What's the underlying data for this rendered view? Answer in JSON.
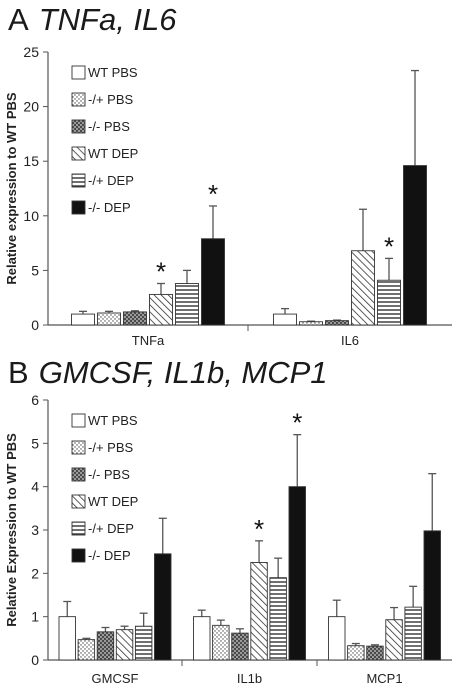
{
  "colors": {
    "axis": "#555555",
    "bar_stroke": "#333333",
    "error": "#555555",
    "ink": "#111111"
  },
  "legend_entries": [
    "WT PBS",
    "-/+ PBS",
    "-/- PBS",
    "WT DEP",
    "-/+ DEP",
    "-/- DEP"
  ],
  "chart_data": [
    {
      "type": "bar",
      "panel_letter": "A",
      "panel_title": "TNFa, IL6",
      "ylabel": "Relative expression to WT PBS",
      "xlabel": "",
      "ylim": [
        0,
        25
      ],
      "yticks": [
        0,
        5,
        10,
        15,
        20,
        25
      ],
      "categories": [
        "TNFa",
        "IL6"
      ],
      "legend_position": "top-left",
      "series": [
        {
          "name": "WT PBS",
          "pattern": "white",
          "values": [
            1.0,
            1.0
          ],
          "errors": [
            0.25,
            0.5
          ]
        },
        {
          "name": "-/+ PBS",
          "pattern": "dots",
          "values": [
            1.1,
            0.3
          ],
          "errors": [
            0.15,
            0.05
          ]
        },
        {
          "name": "-/- PBS",
          "pattern": "checker",
          "values": [
            1.2,
            0.4
          ],
          "errors": [
            0.1,
            0.05
          ]
        },
        {
          "name": "WT DEP",
          "pattern": "diagonal",
          "values": [
            2.8,
            6.8
          ],
          "errors": [
            1.0,
            3.8
          ]
        },
        {
          "name": "-/+ DEP",
          "pattern": "hlines",
          "values": [
            3.8,
            4.1
          ],
          "errors": [
            1.2,
            2.0
          ]
        },
        {
          "name": "-/- DEP",
          "pattern": "black",
          "values": [
            7.9,
            14.6
          ],
          "errors": [
            3.0,
            8.7
          ]
        }
      ],
      "significance": [
        {
          "category": "TNFa",
          "series": "WT DEP",
          "label": "*"
        },
        {
          "category": "TNFa",
          "series": "-/- DEP",
          "label": "*"
        },
        {
          "category": "IL6",
          "series": "-/+ DEP",
          "label": "*"
        }
      ]
    },
    {
      "type": "bar",
      "panel_letter": "B",
      "panel_title": "GMCSF, IL1b, MCP1",
      "ylabel": "Relative Expression to WT PBS",
      "xlabel": "",
      "ylim": [
        0,
        6
      ],
      "yticks": [
        0,
        1,
        2,
        3,
        4,
        5,
        6
      ],
      "categories": [
        "GMCSF",
        "IL1b",
        "MCP1"
      ],
      "legend_position": "top-left",
      "series": [
        {
          "name": "WT PBS",
          "pattern": "white",
          "values": [
            1.0,
            1.0,
            1.0
          ],
          "errors": [
            0.35,
            0.15,
            0.38
          ]
        },
        {
          "name": "-/+ PBS",
          "pattern": "dots",
          "values": [
            0.47,
            0.8,
            0.33
          ],
          "errors": [
            0.03,
            0.12,
            0.05
          ]
        },
        {
          "name": "-/- PBS",
          "pattern": "checker",
          "values": [
            0.65,
            0.62,
            0.32
          ],
          "errors": [
            0.1,
            0.1,
            0.03
          ]
        },
        {
          "name": "WT DEP",
          "pattern": "diagonal",
          "values": [
            0.7,
            2.25,
            0.93
          ],
          "errors": [
            0.08,
            0.5,
            0.28
          ]
        },
        {
          "name": "-/+ DEP",
          "pattern": "hlines",
          "values": [
            0.78,
            1.9,
            1.22
          ],
          "errors": [
            0.3,
            0.45,
            0.48
          ]
        },
        {
          "name": "-/- DEP",
          "pattern": "black",
          "values": [
            2.45,
            4.0,
            2.98
          ],
          "errors": [
            0.82,
            1.2,
            1.32
          ]
        }
      ],
      "significance": [
        {
          "category": "IL1b",
          "series": "WT DEP",
          "label": "*"
        },
        {
          "category": "IL1b",
          "series": "-/- DEP",
          "label": "*"
        }
      ]
    }
  ]
}
